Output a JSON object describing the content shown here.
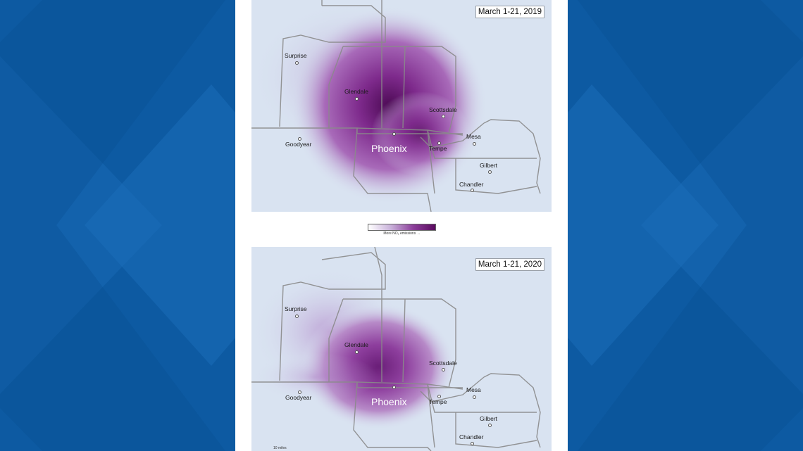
{
  "maps": [
    {
      "id": "2019",
      "date_label": "March 1-21, 2019",
      "cities": [
        {
          "name": "Surprise",
          "label": "Surprise"
        },
        {
          "name": "Glendale",
          "label": "Glendale"
        },
        {
          "name": "Scottsdale",
          "label": "Scottsdale"
        },
        {
          "name": "Mesa",
          "label": "Mesa"
        },
        {
          "name": "Goodyear",
          "label": "Goodyear"
        },
        {
          "name": "Phoenix",
          "label": "Phoenix"
        },
        {
          "name": "Tempe",
          "label": "Tempe"
        },
        {
          "name": "Gilbert",
          "label": "Gilbert"
        },
        {
          "name": "Chandler",
          "label": "Chandler"
        }
      ]
    },
    {
      "id": "2020",
      "date_label": "March 1-21, 2020",
      "cities": [
        {
          "name": "Surprise",
          "label": "Surprise"
        },
        {
          "name": "Glendale",
          "label": "Glendale"
        },
        {
          "name": "Scottsdale",
          "label": "Scottsdale"
        },
        {
          "name": "Mesa",
          "label": "Mesa"
        },
        {
          "name": "Goodyear",
          "label": "Goodyear"
        },
        {
          "name": "Phoenix",
          "label": "Phoenix"
        },
        {
          "name": "Tempe",
          "label": "Tempe"
        },
        {
          "name": "Gilbert",
          "label": "Gilbert"
        },
        {
          "name": "Chandler",
          "label": "Chandler"
        }
      ]
    }
  ],
  "legend": {
    "label": "More NO₂ emissions →",
    "color_low": "#ffffff",
    "color_high": "#5a0a5f"
  },
  "scale_bar": {
    "label": "10 miles"
  },
  "colors": {
    "background": "#0d5aa2",
    "panel": "#ffffff",
    "map_base": "#d9e3f1",
    "emission_peak": "#5a0a5f",
    "roads": "#8a8a8a"
  }
}
